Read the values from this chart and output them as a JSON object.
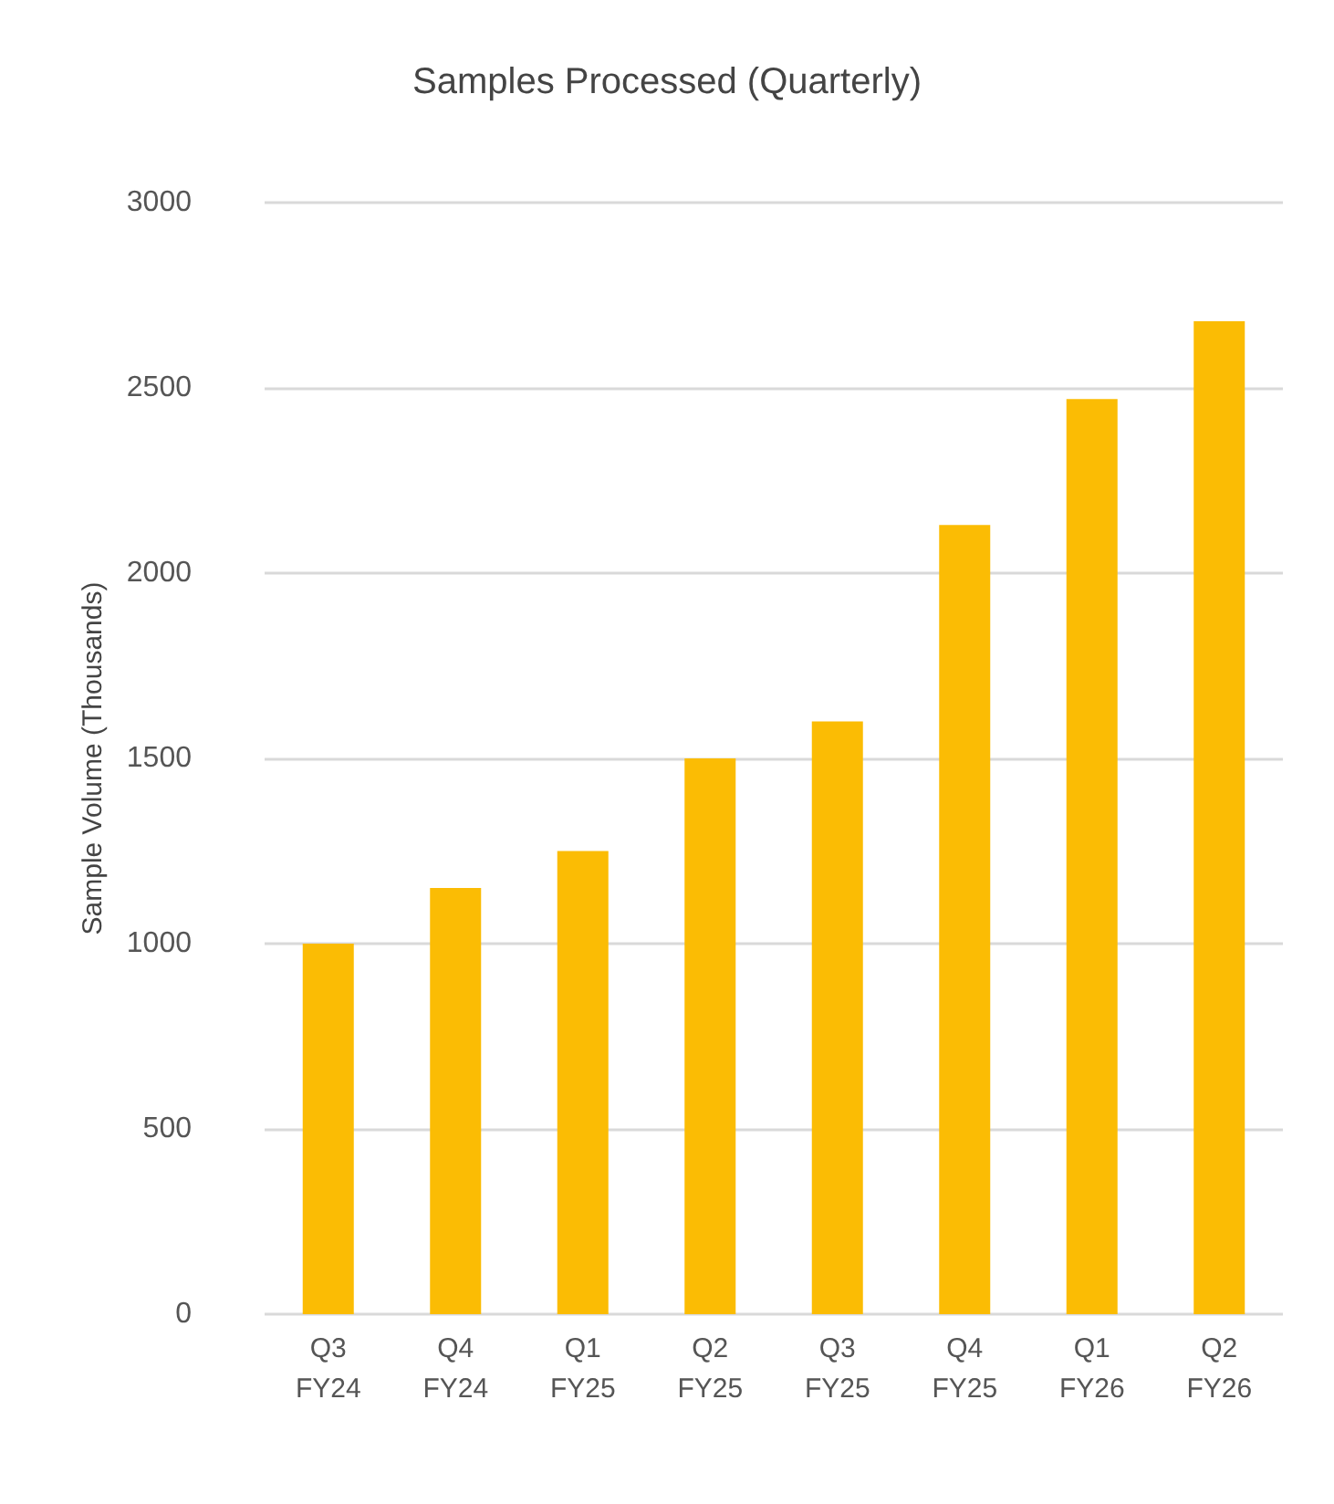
{
  "chart_data": {
    "type": "bar",
    "title": "Samples Processed (Quarterly)",
    "ylabel": "Sample Volume (Thousands)",
    "categories": [
      "Q3\nFY24",
      "Q4\nFY24",
      "Q1\nFY25",
      "Q2\nFY25",
      "Q3\nFY25",
      "Q4\nFY25",
      "Q1\nFY26",
      "Q2\nFY26"
    ],
    "values": [
      1000,
      1150,
      1250,
      1500,
      1600,
      2130,
      2470,
      2680
    ],
    "color": "#fbbc04",
    "ylim": [
      0,
      3000
    ],
    "yticks": [
      0,
      500,
      1000,
      1500,
      2000,
      2500,
      3000
    ],
    "grid": "y"
  }
}
